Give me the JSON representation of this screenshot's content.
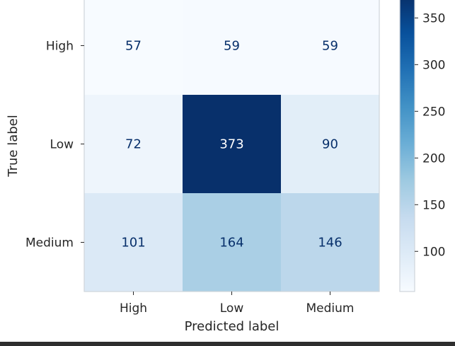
{
  "chart_data": {
    "type": "heatmap",
    "title": "",
    "xlabel": "Predicted label",
    "ylabel": "True label",
    "x_categories": [
      "High",
      "Low",
      "Medium"
    ],
    "y_categories": [
      "High",
      "Low",
      "Medium"
    ],
    "matrix": [
      [
        57,
        59,
        59
      ],
      [
        72,
        373,
        90
      ],
      [
        101,
        164,
        146
      ]
    ],
    "colormap": "Blues",
    "colorbar": {
      "ticks": [
        100,
        150,
        200,
        250,
        300,
        350
      ],
      "range": [
        57,
        373
      ]
    },
    "grid": false
  }
}
